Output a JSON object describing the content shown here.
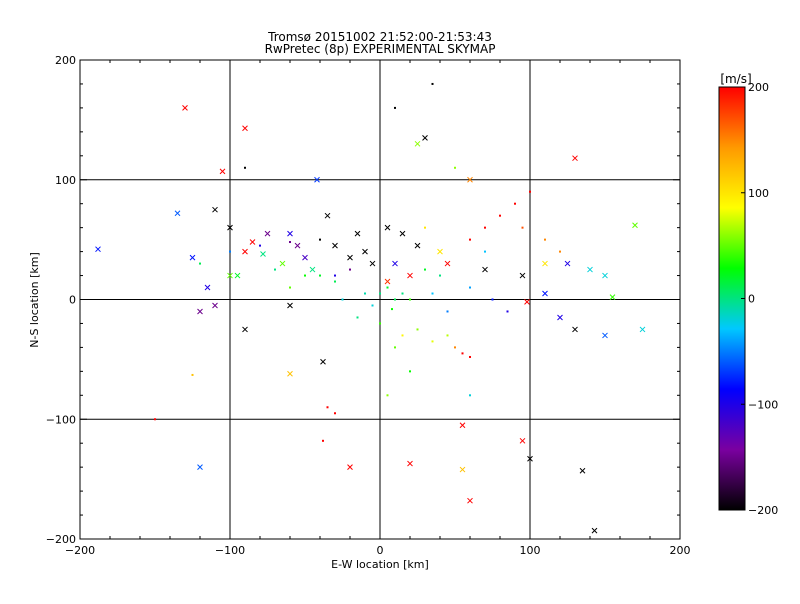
{
  "chart_data": {
    "type": "scatter",
    "title": "Tromsø 20151002 21:52:00-21:53:43",
    "subtitle": "RwPretec (8p) EXPERIMENTAL SKYMAP",
    "xlabel": "E-W location [km]",
    "ylabel": "N-S location [km]",
    "xlim": [
      -200,
      200
    ],
    "ylim": [
      -200,
      200
    ],
    "x_ticks": [
      -200,
      -100,
      0,
      100,
      200
    ],
    "y_ticks": [
      -200,
      -100,
      0,
      100,
      200
    ],
    "grid": true,
    "colorbar": {
      "label": "[m/s]",
      "range": [
        -200,
        200
      ],
      "ticks": [
        200,
        100,
        0,
        -100,
        -200
      ],
      "colors": [
        "#000000",
        "#7a00a0",
        "#0000ff",
        "#00c8ff",
        "#00ff00",
        "#ffff00",
        "#ff9900",
        "#ff0000"
      ]
    },
    "series": [
      {
        "marker": "cross",
        "points": [
          [
            -130,
            160,
            200
          ],
          [
            -90,
            143,
            200
          ],
          [
            -105,
            107,
            200
          ],
          [
            -42,
            100,
            -70
          ],
          [
            -35,
            70,
            -200
          ],
          [
            -85,
            48,
            200
          ],
          [
            -110,
            75,
            -200
          ],
          [
            -100,
            60,
            -200
          ],
          [
            -90,
            40,
            200
          ],
          [
            -75,
            55,
            -150
          ],
          [
            -60,
            55,
            -100
          ],
          [
            -55,
            45,
            -150
          ],
          [
            -65,
            30,
            50
          ],
          [
            -50,
            35,
            -120
          ],
          [
            -30,
            45,
            -200
          ],
          [
            -20,
            35,
            -200
          ],
          [
            -10,
            40,
            -200
          ],
          [
            5,
            60,
            -200
          ],
          [
            15,
            55,
            -200
          ],
          [
            25,
            45,
            -200
          ],
          [
            -45,
            25,
            0
          ],
          [
            -125,
            35,
            -80
          ],
          [
            -135,
            72,
            -60
          ],
          [
            -188,
            42,
            -80
          ],
          [
            -100,
            20,
            50
          ],
          [
            -110,
            -5,
            -150
          ],
          [
            -120,
            -10,
            -150
          ],
          [
            -90,
            -25,
            -200
          ],
          [
            -60,
            -5,
            -200
          ],
          [
            -38,
            -52,
            -200
          ],
          [
            -60,
            -62,
            120
          ],
          [
            -120,
            -140,
            -60
          ],
          [
            -20,
            -140,
            200
          ],
          [
            20,
            -137,
            200
          ],
          [
            55,
            -105,
            200
          ],
          [
            55,
            -142,
            120
          ],
          [
            60,
            -168,
            200
          ],
          [
            95,
            -118,
            200
          ],
          [
            100,
            -133,
            -200
          ],
          [
            135,
            -143,
            -200
          ],
          [
            143,
            -193,
            -200
          ],
          [
            70,
            25,
            -200
          ],
          [
            95,
            20,
            -200
          ],
          [
            98,
            -2,
            200
          ],
          [
            110,
            5,
            -80
          ],
          [
            120,
            -15,
            -100
          ],
          [
            130,
            -25,
            -200
          ],
          [
            140,
            25,
            -20
          ],
          [
            150,
            20,
            -20
          ],
          [
            170,
            62,
            50
          ],
          [
            175,
            -25,
            -20
          ],
          [
            150,
            -30,
            -60
          ],
          [
            155,
            2,
            40
          ],
          [
            130,
            118,
            200
          ],
          [
            110,
            30,
            100
          ],
          [
            45,
            30,
            200
          ],
          [
            20,
            20,
            200
          ],
          [
            5,
            15,
            180
          ],
          [
            -5,
            30,
            -200
          ],
          [
            30,
            135,
            -200
          ],
          [
            25,
            130,
            60
          ],
          [
            60,
            100,
            150
          ],
          [
            40,
            40,
            100
          ],
          [
            125,
            30,
            -100
          ],
          [
            -115,
            10,
            -100
          ],
          [
            -95,
            20,
            20
          ],
          [
            -78,
            38,
            0
          ],
          [
            -15,
            55,
            -200
          ],
          [
            10,
            30,
            -100
          ]
        ]
      },
      {
        "marker": "dot",
        "points": [
          [
            0,
            5,
            0
          ],
          [
            10,
            0,
            10
          ],
          [
            -5,
            -5,
            -20
          ],
          [
            5,
            10,
            20
          ],
          [
            15,
            5,
            0
          ],
          [
            20,
            0,
            40
          ],
          [
            -10,
            5,
            -10
          ],
          [
            8,
            -8,
            30
          ],
          [
            25,
            -25,
            60
          ],
          [
            35,
            -35,
            80
          ],
          [
            15,
            -30,
            90
          ],
          [
            45,
            -30,
            70
          ],
          [
            50,
            -40,
            150
          ],
          [
            55,
            -45,
            200
          ],
          [
            60,
            -48,
            200
          ],
          [
            -40,
            20,
            20
          ],
          [
            -30,
            15,
            10
          ],
          [
            -50,
            20,
            30
          ],
          [
            -70,
            25,
            0
          ],
          [
            -60,
            10,
            50
          ],
          [
            30,
            25,
            20
          ],
          [
            40,
            20,
            0
          ],
          [
            60,
            10,
            -40
          ],
          [
            75,
            0,
            -80
          ],
          [
            85,
            -10,
            -100
          ],
          [
            80,
            70,
            200
          ],
          [
            90,
            80,
            200
          ],
          [
            70,
            60,
            200
          ],
          [
            100,
            90,
            200
          ],
          [
            95,
            60,
            170
          ],
          [
            110,
            50,
            150
          ],
          [
            120,
            40,
            150
          ],
          [
            60,
            50,
            200
          ],
          [
            -35,
            -90,
            200
          ],
          [
            -30,
            -95,
            200
          ],
          [
            -38,
            -118,
            200
          ],
          [
            -30,
            20,
            -100
          ],
          [
            -20,
            25,
            -150
          ],
          [
            -80,
            45,
            -100
          ],
          [
            -60,
            48,
            -150
          ],
          [
            -40,
            50,
            -200
          ],
          [
            -100,
            40,
            -50
          ],
          [
            -120,
            30,
            10
          ],
          [
            35,
            180,
            -200
          ],
          [
            10,
            160,
            -200
          ],
          [
            -150,
            -100,
            200
          ],
          [
            -125,
            -63,
            120
          ],
          [
            -90,
            110,
            -200
          ],
          [
            60,
            -80,
            -20
          ],
          [
            30,
            60,
            100
          ],
          [
            0,
            -20,
            40
          ],
          [
            -15,
            -15,
            0
          ],
          [
            10,
            -40,
            50
          ],
          [
            20,
            -60,
            30
          ],
          [
            5,
            -80,
            60
          ],
          [
            35,
            5,
            -30
          ],
          [
            45,
            -10,
            -50
          ],
          [
            -25,
            0,
            -20
          ],
          [
            50,
            110,
            60
          ],
          [
            70,
            40,
            -30
          ]
        ]
      }
    ]
  }
}
